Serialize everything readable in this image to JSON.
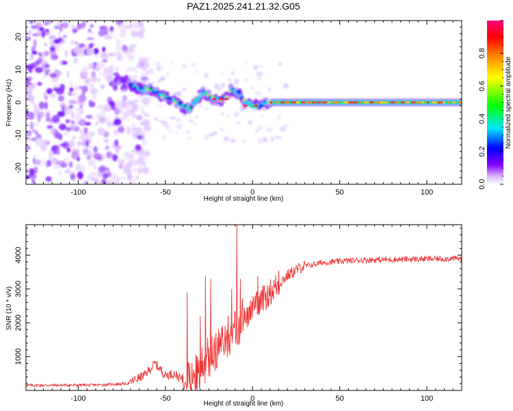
{
  "title": "PAZ1.2025.241.21.32.G05",
  "spectrogram": {
    "chart_data": {
      "type": "heatmap",
      "title": "PAZ1.2025.241.21.32.G05",
      "xlabel": "Height of straight line (km)",
      "ylabel": "Frequency (Hz)",
      "xlim": [
        -130,
        120
      ],
      "ylim": [
        -25,
        25
      ],
      "xticks": [
        -100,
        -50,
        0,
        50,
        100
      ],
      "yticks": [
        20,
        10,
        0,
        -10,
        -20
      ],
      "grid": false,
      "colorbar": {
        "label": "Normalized spectral amplitude",
        "range": [
          0,
          1
        ],
        "ticks": [
          0.0,
          0.2,
          0.4,
          0.6,
          0.8
        ],
        "colormap": [
          "#ffffff",
          "#d9b3ff",
          "#8000ff",
          "#0000ff",
          "#00e5ff",
          "#00ff00",
          "#ffff00",
          "#ff8800",
          "#ff0000",
          "#ff0080"
        ]
      },
      "features": {
        "noise_region_x": [
          -130,
          -70
        ],
        "ridge_trace": [
          {
            "x": -80,
            "f": 7
          },
          {
            "x": -72,
            "f": 6
          },
          {
            "x": -65,
            "f": 4
          },
          {
            "x": -58,
            "f": 4
          },
          {
            "x": -52,
            "f": 2
          },
          {
            "x": -46,
            "f": 1
          },
          {
            "x": -40,
            "f": -1
          },
          {
            "x": -36,
            "f": -2
          },
          {
            "x": -32,
            "f": 1
          },
          {
            "x": -28,
            "f": 3
          },
          {
            "x": -22,
            "f": 1
          },
          {
            "x": -16,
            "f": 1
          },
          {
            "x": -12,
            "f": 4
          },
          {
            "x": -8,
            "f": 3
          },
          {
            "x": -4,
            "f": 0
          },
          {
            "x": 0,
            "f": -1
          },
          {
            "x": 4,
            "f": -1
          },
          {
            "x": 8,
            "f": 0
          },
          {
            "x": 20,
            "f": 0
          },
          {
            "x": 60,
            "f": 0
          },
          {
            "x": 100,
            "f": 0
          },
          {
            "x": 120,
            "f": 0
          }
        ],
        "steady_tone_hz": 0,
        "steady_tone_from_x": 10
      }
    }
  },
  "snr": {
    "chart_data": {
      "type": "line",
      "title": "",
      "xlabel": "Height of straight line (km)",
      "ylabel": "SNR (10 * v/v)",
      "xlim": [
        -130,
        120
      ],
      "ylim": [
        0,
        4900
      ],
      "xticks": [
        -100,
        -50,
        0,
        50,
        100
      ],
      "yticks": [
        1000,
        2000,
        3000,
        4000
      ],
      "grid": false,
      "series": [
        {
          "name": "SNR",
          "color": "#ee3333",
          "trend": [
            {
              "x": -130,
              "y": 150
            },
            {
              "x": -90,
              "y": 160
            },
            {
              "x": -72,
              "y": 200
            },
            {
              "x": -62,
              "y": 450
            },
            {
              "x": -56,
              "y": 800
            },
            {
              "x": -50,
              "y": 450
            },
            {
              "x": -45,
              "y": 500
            },
            {
              "x": -40,
              "y": 300
            },
            {
              "x": -34,
              "y": 500
            },
            {
              "x": -28,
              "y": 800
            },
            {
              "x": -22,
              "y": 1200
            },
            {
              "x": -16,
              "y": 1500
            },
            {
              "x": -10,
              "y": 1800
            },
            {
              "x": -4,
              "y": 2200
            },
            {
              "x": 2,
              "y": 2500
            },
            {
              "x": 8,
              "y": 2800
            },
            {
              "x": 14,
              "y": 3100
            },
            {
              "x": 20,
              "y": 3400
            },
            {
              "x": 28,
              "y": 3650
            },
            {
              "x": 40,
              "y": 3780
            },
            {
              "x": 60,
              "y": 3850
            },
            {
              "x": 90,
              "y": 3880
            },
            {
              "x": 120,
              "y": 3900
            }
          ],
          "spikes": [
            {
              "x": -37.5,
              "y": 2900
            },
            {
              "x": -30,
              "y": 2200
            },
            {
              "x": -27,
              "y": 3400
            },
            {
              "x": -24,
              "y": 3300
            },
            {
              "x": -12,
              "y": 3000
            },
            {
              "x": -9,
              "y": 4900
            },
            {
              "x": -7,
              "y": 3300
            },
            {
              "x": 3,
              "y": 3400
            },
            {
              "x": 15,
              "y": 3550
            }
          ]
        }
      ]
    }
  }
}
